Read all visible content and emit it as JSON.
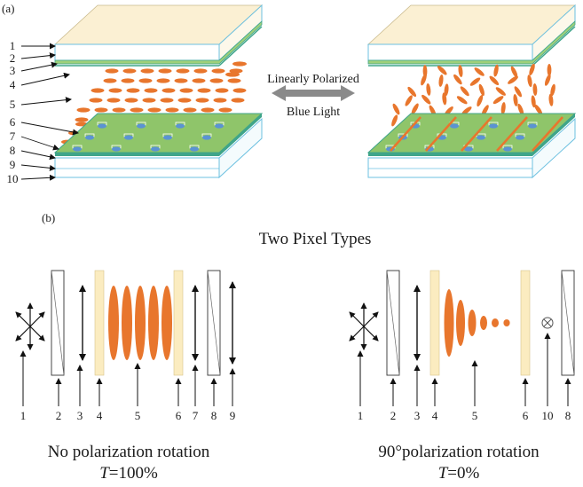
{
  "panel_a": {
    "label": "(a)",
    "callouts": [
      "1",
      "2",
      "3",
      "4",
      "5",
      "6",
      "7",
      "8",
      "9",
      "10"
    ],
    "center_text_line1": "Linearly Polarized",
    "center_text_line2": "Blue Light"
  },
  "panel_b": {
    "label": "(b)",
    "title": "Two Pixel Types",
    "left": {
      "numbers": [
        "1",
        "2",
        "3",
        "4",
        "5",
        "6",
        "7",
        "8",
        "9"
      ],
      "caption_line1": "No polarization rotation",
      "caption_T": "T",
      "caption_value": "=100%"
    },
    "right": {
      "numbers": [
        "1",
        "2",
        "3",
        "4",
        "5",
        "6",
        "10",
        "8"
      ],
      "caption_line1": "90°polarization rotation",
      "caption_T": "T",
      "caption_value": "=0%"
    }
  },
  "colors": {
    "top_substrate": "#fbf0d3",
    "green_layer": "#8fc56a",
    "teal_edge": "#3fa58a",
    "lc_orange": "#e8762d",
    "electrode_blue": "#5b93d3",
    "polarizer_yellow": "#fbecc0",
    "glass_edge": "#6cc0e0",
    "arrow_gray": "#8a8a8a"
  }
}
